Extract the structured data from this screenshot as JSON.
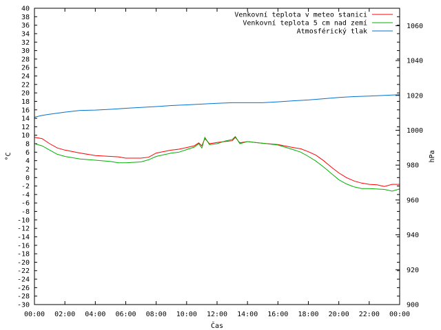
{
  "chart_data": {
    "type": "line",
    "title": "",
    "xlabel": "Čas",
    "ylabel": "°C",
    "y2label": "hPa",
    "x_ticks": [
      "00:00",
      "02:00",
      "04:00",
      "06:00",
      "08:00",
      "10:00",
      "12:00",
      "14:00",
      "16:00",
      "18:00",
      "20:00",
      "22:00",
      "00:00"
    ],
    "xlim_hours": [
      0,
      24
    ],
    "ylim": [
      -30,
      40
    ],
    "y_step": 2,
    "y2lim": [
      900,
      1070
    ],
    "y2_ticks": [
      900,
      920,
      940,
      960,
      980,
      1000,
      1020,
      1040,
      1060
    ],
    "grid": false,
    "legend_position": "top-right",
    "series": [
      {
        "name": "Venkovní teplota v meteo stanici",
        "color": "#ff0000",
        "axis": "left",
        "x": [
          0,
          0.5,
          1,
          1.5,
          2,
          3,
          4,
          5,
          5.5,
          6,
          6.5,
          7,
          7.5,
          8,
          9,
          9.5,
          10,
          10.5,
          10.8,
          11,
          11.2,
          11.5,
          12,
          12.5,
          13,
          13.2,
          13.5,
          14,
          14.5,
          15,
          16,
          17,
          17.5,
          18,
          18.5,
          19,
          19.5,
          20,
          20.5,
          21,
          21.5,
          22,
          22.5,
          23,
          23.5,
          24
        ],
        "values": [
          9.5,
          9.2,
          8.0,
          7.0,
          6.5,
          5.8,
          5.2,
          5.0,
          4.9,
          4.6,
          4.6,
          4.6,
          4.8,
          5.8,
          6.5,
          6.7,
          7.1,
          7.5,
          8.2,
          7.5,
          9.2,
          8.0,
          8.3,
          8.5,
          8.7,
          9.5,
          8.2,
          8.5,
          8.3,
          8.1,
          7.8,
          7.1,
          6.8,
          6.1,
          5.3,
          4.0,
          2.5,
          1.1,
          0.0,
          -0.8,
          -1.3,
          -1.6,
          -1.7,
          -2.1,
          -1.6,
          -1.6
        ]
      },
      {
        "name": "Venkovní teplota 5 cm nad zemí",
        "color": "#00b000",
        "axis": "left",
        "x": [
          0,
          0.5,
          1,
          1.5,
          2,
          3,
          4,
          5,
          5.5,
          6,
          6.5,
          7,
          7.5,
          8,
          9,
          9.5,
          10,
          10.5,
          10.8,
          11,
          11.2,
          11.5,
          12,
          12.5,
          13,
          13.2,
          13.5,
          14,
          14.5,
          15,
          16,
          17,
          17.5,
          18,
          18.5,
          19,
          19.5,
          20,
          20.5,
          21,
          21.5,
          22,
          22.5,
          23,
          23.5,
          24
        ],
        "values": [
          8.0,
          7.5,
          6.5,
          5.5,
          5.0,
          4.4,
          4.1,
          3.8,
          3.5,
          3.5,
          3.6,
          3.7,
          4.2,
          5.0,
          5.8,
          6.0,
          6.6,
          7.2,
          8.0,
          7.0,
          9.5,
          7.8,
          8.0,
          8.6,
          9.0,
          9.7,
          8.0,
          8.5,
          8.3,
          8.1,
          7.7,
          6.6,
          6.0,
          5.0,
          3.9,
          2.5,
          1.0,
          -0.5,
          -1.5,
          -2.2,
          -2.6,
          -2.6,
          -2.7,
          -2.8,
          -3.2,
          -2.7
        ]
      },
      {
        "name": "Atmosférický tlak",
        "color": "#0070d0",
        "axis": "right",
        "x": [
          0,
          0.5,
          1,
          2,
          3,
          4,
          5,
          6,
          7,
          8,
          9,
          10,
          11,
          12,
          13,
          14,
          15,
          16,
          17,
          18,
          19,
          20,
          21,
          22,
          23,
          24
        ],
        "values": [
          1007.5,
          1008.5,
          1009.2,
          1010.4,
          1011.4,
          1011.6,
          1012.0,
          1012.6,
          1013.1,
          1013.6,
          1014.2,
          1014.6,
          1015.0,
          1015.5,
          1015.8,
          1015.8,
          1015.8,
          1016.3,
          1016.9,
          1017.4,
          1018.1,
          1018.8,
          1019.3,
          1019.6,
          1020.0,
          1020.4
        ]
      }
    ]
  }
}
